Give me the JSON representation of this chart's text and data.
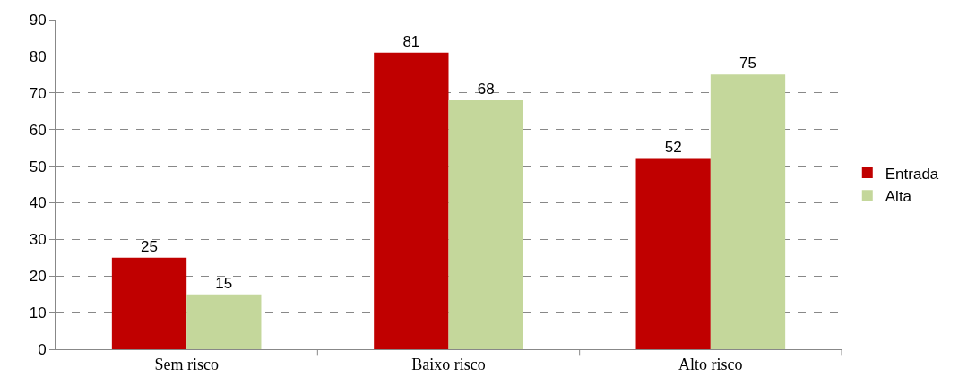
{
  "chart_data": {
    "type": "bar",
    "categories": [
      "Sem risco",
      "Baixo risco",
      "Alto risco"
    ],
    "series": [
      {
        "name": "Entrada",
        "color": "#c00000",
        "values": [
          25,
          81,
          52
        ]
      },
      {
        "name": "Alta",
        "color": "#c4d79b",
        "values": [
          15,
          68,
          75
        ]
      }
    ],
    "ylim": [
      0,
      90
    ],
    "yticks": [
      0,
      10,
      20,
      30,
      40,
      50,
      60,
      70,
      80,
      90
    ],
    "grid": "y",
    "legend": "right",
    "data_labels": true
  }
}
